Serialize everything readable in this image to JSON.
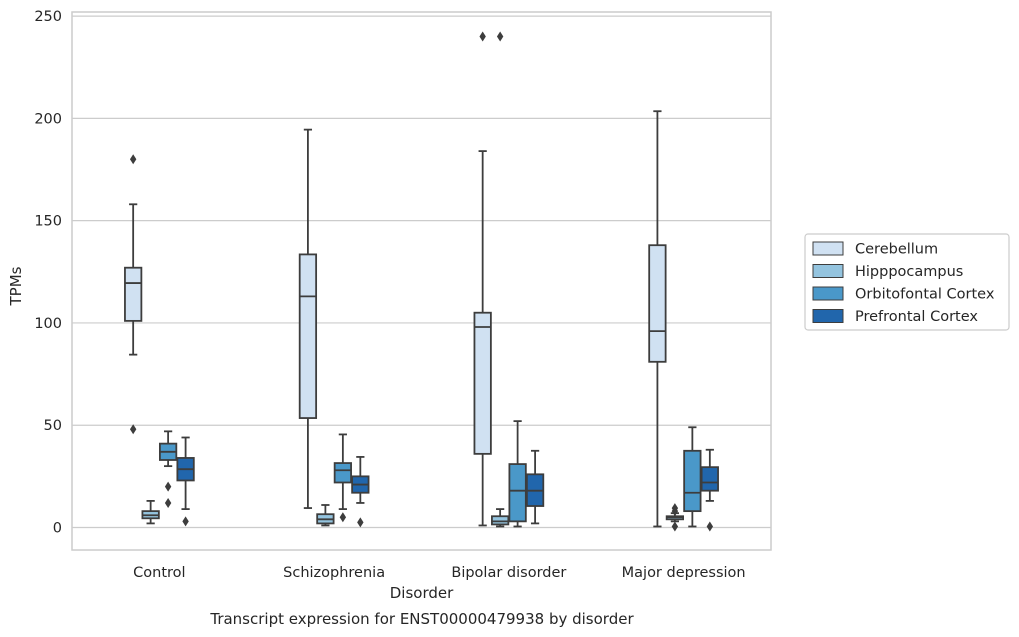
{
  "chart_data": {
    "type": "box",
    "caption": "Transcript expression for ENST00000479938 by disorder",
    "xlabel": "Disorder",
    "ylabel": "TPMs",
    "ylim": [
      -11,
      252
    ],
    "yticks": [
      0,
      50,
      100,
      150,
      200,
      250
    ],
    "grid": "y",
    "legend_position": "right",
    "categories": [
      "Control",
      "Schizophrenia",
      "Bipolar disorder",
      "Major depression"
    ],
    "series": [
      {
        "name": "Cerebellum",
        "color": "#d0e1f2",
        "boxes": [
          {
            "whisker_low": 84.5,
            "q1": 101,
            "median": 119.5,
            "q3": 127,
            "whisker_high": 158,
            "outliers": [
              180,
              48
            ]
          },
          {
            "whisker_low": 9.5,
            "q1": 53.5,
            "median": 113,
            "q3": 133.5,
            "whisker_high": 194.5,
            "outliers": []
          },
          {
            "whisker_low": 1,
            "q1": 36,
            "median": 98,
            "q3": 105,
            "whisker_high": 184,
            "outliers": [
              240
            ]
          },
          {
            "whisker_low": 0.5,
            "q1": 81,
            "median": 96,
            "q3": 138,
            "whisker_high": 203.5,
            "outliers": []
          }
        ]
      },
      {
        "name": "Hipppocampus",
        "color": "#94c4df",
        "boxes": [
          {
            "whisker_low": 2,
            "q1": 4.5,
            "median": 6,
            "q3": 8,
            "whisker_high": 13,
            "outliers": []
          },
          {
            "whisker_low": 1,
            "q1": 2,
            "median": 4,
            "q3": 6.5,
            "whisker_high": 11,
            "outliers": []
          },
          {
            "whisker_low": 0.5,
            "q1": 1.5,
            "median": 3,
            "q3": 5.5,
            "whisker_high": 9,
            "outliers": [
              240
            ]
          },
          {
            "whisker_low": 3,
            "q1": 4,
            "median": 5,
            "q3": 5.5,
            "whisker_high": 7,
            "outliers": [
              9.5,
              8,
              0.5
            ]
          }
        ]
      },
      {
        "name": "Orbitofontal Cortex",
        "color": "#4a98c9",
        "boxes": [
          {
            "whisker_low": 30,
            "q1": 33,
            "median": 37,
            "q3": 41,
            "whisker_high": 47,
            "outliers": [
              20,
              12
            ]
          },
          {
            "whisker_low": 9,
            "q1": 22,
            "median": 28,
            "q3": 31.5,
            "whisker_high": 45.5,
            "outliers": [
              5
            ]
          },
          {
            "whisker_low": 0.5,
            "q1": 3,
            "median": 18,
            "q3": 31,
            "whisker_high": 52,
            "outliers": []
          },
          {
            "whisker_low": 0.5,
            "q1": 8,
            "median": 17,
            "q3": 37.5,
            "whisker_high": 49,
            "outliers": []
          }
        ]
      },
      {
        "name": "Prefrontal Cortex",
        "color": "#2166ac",
        "boxes": [
          {
            "whisker_low": 9,
            "q1": 23,
            "median": 28.5,
            "q3": 34,
            "whisker_high": 44,
            "outliers": [
              3
            ]
          },
          {
            "whisker_low": 12,
            "q1": 17,
            "median": 21,
            "q3": 25,
            "whisker_high": 34.5,
            "outliers": [
              2.5
            ]
          },
          {
            "whisker_low": 2,
            "q1": 10.5,
            "median": 18,
            "q3": 26,
            "whisker_high": 37.5,
            "outliers": []
          },
          {
            "whisker_low": 13,
            "q1": 18,
            "median": 22,
            "q3": 29.5,
            "whisker_high": 38,
            "outliers": [
              0.5
            ]
          }
        ]
      }
    ]
  }
}
